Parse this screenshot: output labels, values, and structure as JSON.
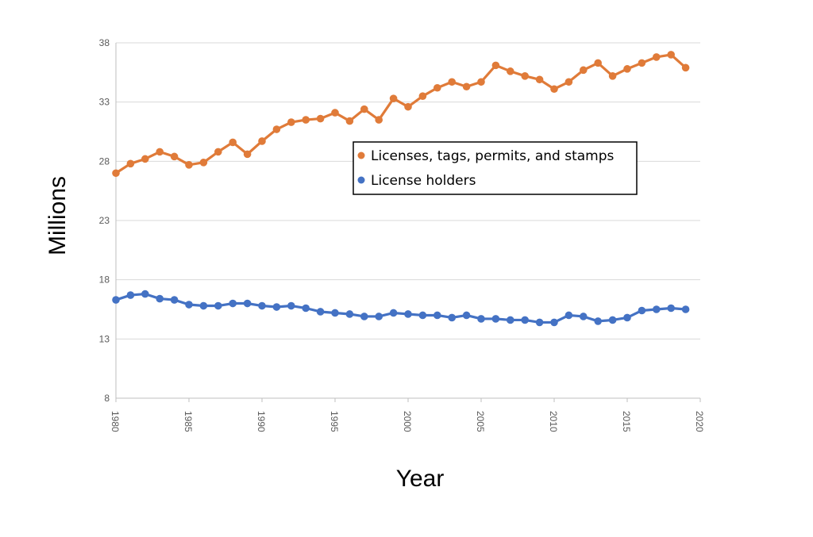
{
  "chart_data": {
    "type": "line",
    "xlabel": "Year",
    "ylabel": "Millions",
    "xlim": [
      1980,
      2020
    ],
    "ylim": [
      8,
      38
    ],
    "xticks": [
      "1980",
      "1985",
      "1990",
      "1995",
      "2000",
      "2005",
      "2010",
      "2015",
      "2020"
    ],
    "yticks": [
      "8",
      "13",
      "18",
      "23",
      "28",
      "33",
      "38"
    ],
    "grid": "horizontal",
    "legend_position": "center",
    "x": [
      1980,
      1981,
      1982,
      1983,
      1984,
      1985,
      1986,
      1987,
      1988,
      1989,
      1990,
      1991,
      1992,
      1993,
      1994,
      1995,
      1996,
      1997,
      1998,
      1999,
      2000,
      2001,
      2002,
      2003,
      2004,
      2005,
      2006,
      2007,
      2008,
      2009,
      2010,
      2011,
      2012,
      2013,
      2014,
      2015,
      2016,
      2017,
      2018,
      2019
    ],
    "series": [
      {
        "name": "Licenses, tags, permits, and stamps",
        "color": "#E07B39",
        "values": [
          27.0,
          27.8,
          28.2,
          28.8,
          28.4,
          27.7,
          27.9,
          28.8,
          29.6,
          28.6,
          29.7,
          30.7,
          31.3,
          31.5,
          31.6,
          32.1,
          31.4,
          32.4,
          31.5,
          33.3,
          32.6,
          33.5,
          34.2,
          34.7,
          34.3,
          34.7,
          36.1,
          35.6,
          35.2,
          34.9,
          34.1,
          34.7,
          35.7,
          36.3,
          35.2,
          35.8,
          36.3,
          36.8,
          37.0,
          35.9
        ]
      },
      {
        "name": "License holders",
        "color": "#4472C4",
        "values": [
          16.3,
          16.7,
          16.8,
          16.4,
          16.3,
          15.9,
          15.8,
          15.8,
          16.0,
          16.0,
          15.8,
          15.7,
          15.8,
          15.6,
          15.3,
          15.2,
          15.1,
          14.9,
          14.9,
          15.2,
          15.1,
          15.0,
          15.0,
          14.8,
          15.0,
          14.7,
          14.7,
          14.6,
          14.6,
          14.4,
          14.4,
          15.0,
          14.9,
          14.5,
          14.6,
          14.8,
          15.4,
          15.5,
          15.6,
          15.5
        ]
      }
    ]
  }
}
